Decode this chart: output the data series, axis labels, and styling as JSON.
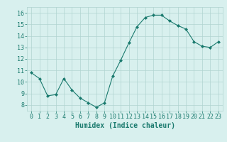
{
  "x": [
    0,
    1,
    2,
    3,
    4,
    5,
    6,
    7,
    8,
    9,
    10,
    11,
    12,
    13,
    14,
    15,
    16,
    17,
    18,
    19,
    20,
    21,
    22,
    23
  ],
  "y": [
    10.8,
    10.3,
    8.8,
    8.9,
    10.3,
    9.3,
    8.6,
    8.2,
    7.8,
    8.2,
    10.5,
    11.9,
    13.4,
    14.8,
    15.6,
    15.8,
    15.8,
    15.3,
    14.9,
    14.6,
    13.5,
    13.1,
    13.0,
    13.5
  ],
  "line_color": "#1a7a6e",
  "marker": "D",
  "marker_size": 2,
  "bg_color": "#d8f0ee",
  "grid_color": "#b0d4d0",
  "xlabel": "Humidex (Indice chaleur)",
  "ylim": [
    7.5,
    16.5
  ],
  "xlim": [
    -0.5,
    23.5
  ],
  "yticks": [
    8,
    9,
    10,
    11,
    12,
    13,
    14,
    15,
    16
  ],
  "xticks": [
    0,
    1,
    2,
    3,
    4,
    5,
    6,
    7,
    8,
    9,
    10,
    11,
    12,
    13,
    14,
    15,
    16,
    17,
    18,
    19,
    20,
    21,
    22,
    23
  ],
  "tick_color": "#1a7a6e",
  "label_color": "#1a7a6e",
  "xlabel_fontsize": 7,
  "tick_fontsize": 6,
  "linewidth": 0.8
}
